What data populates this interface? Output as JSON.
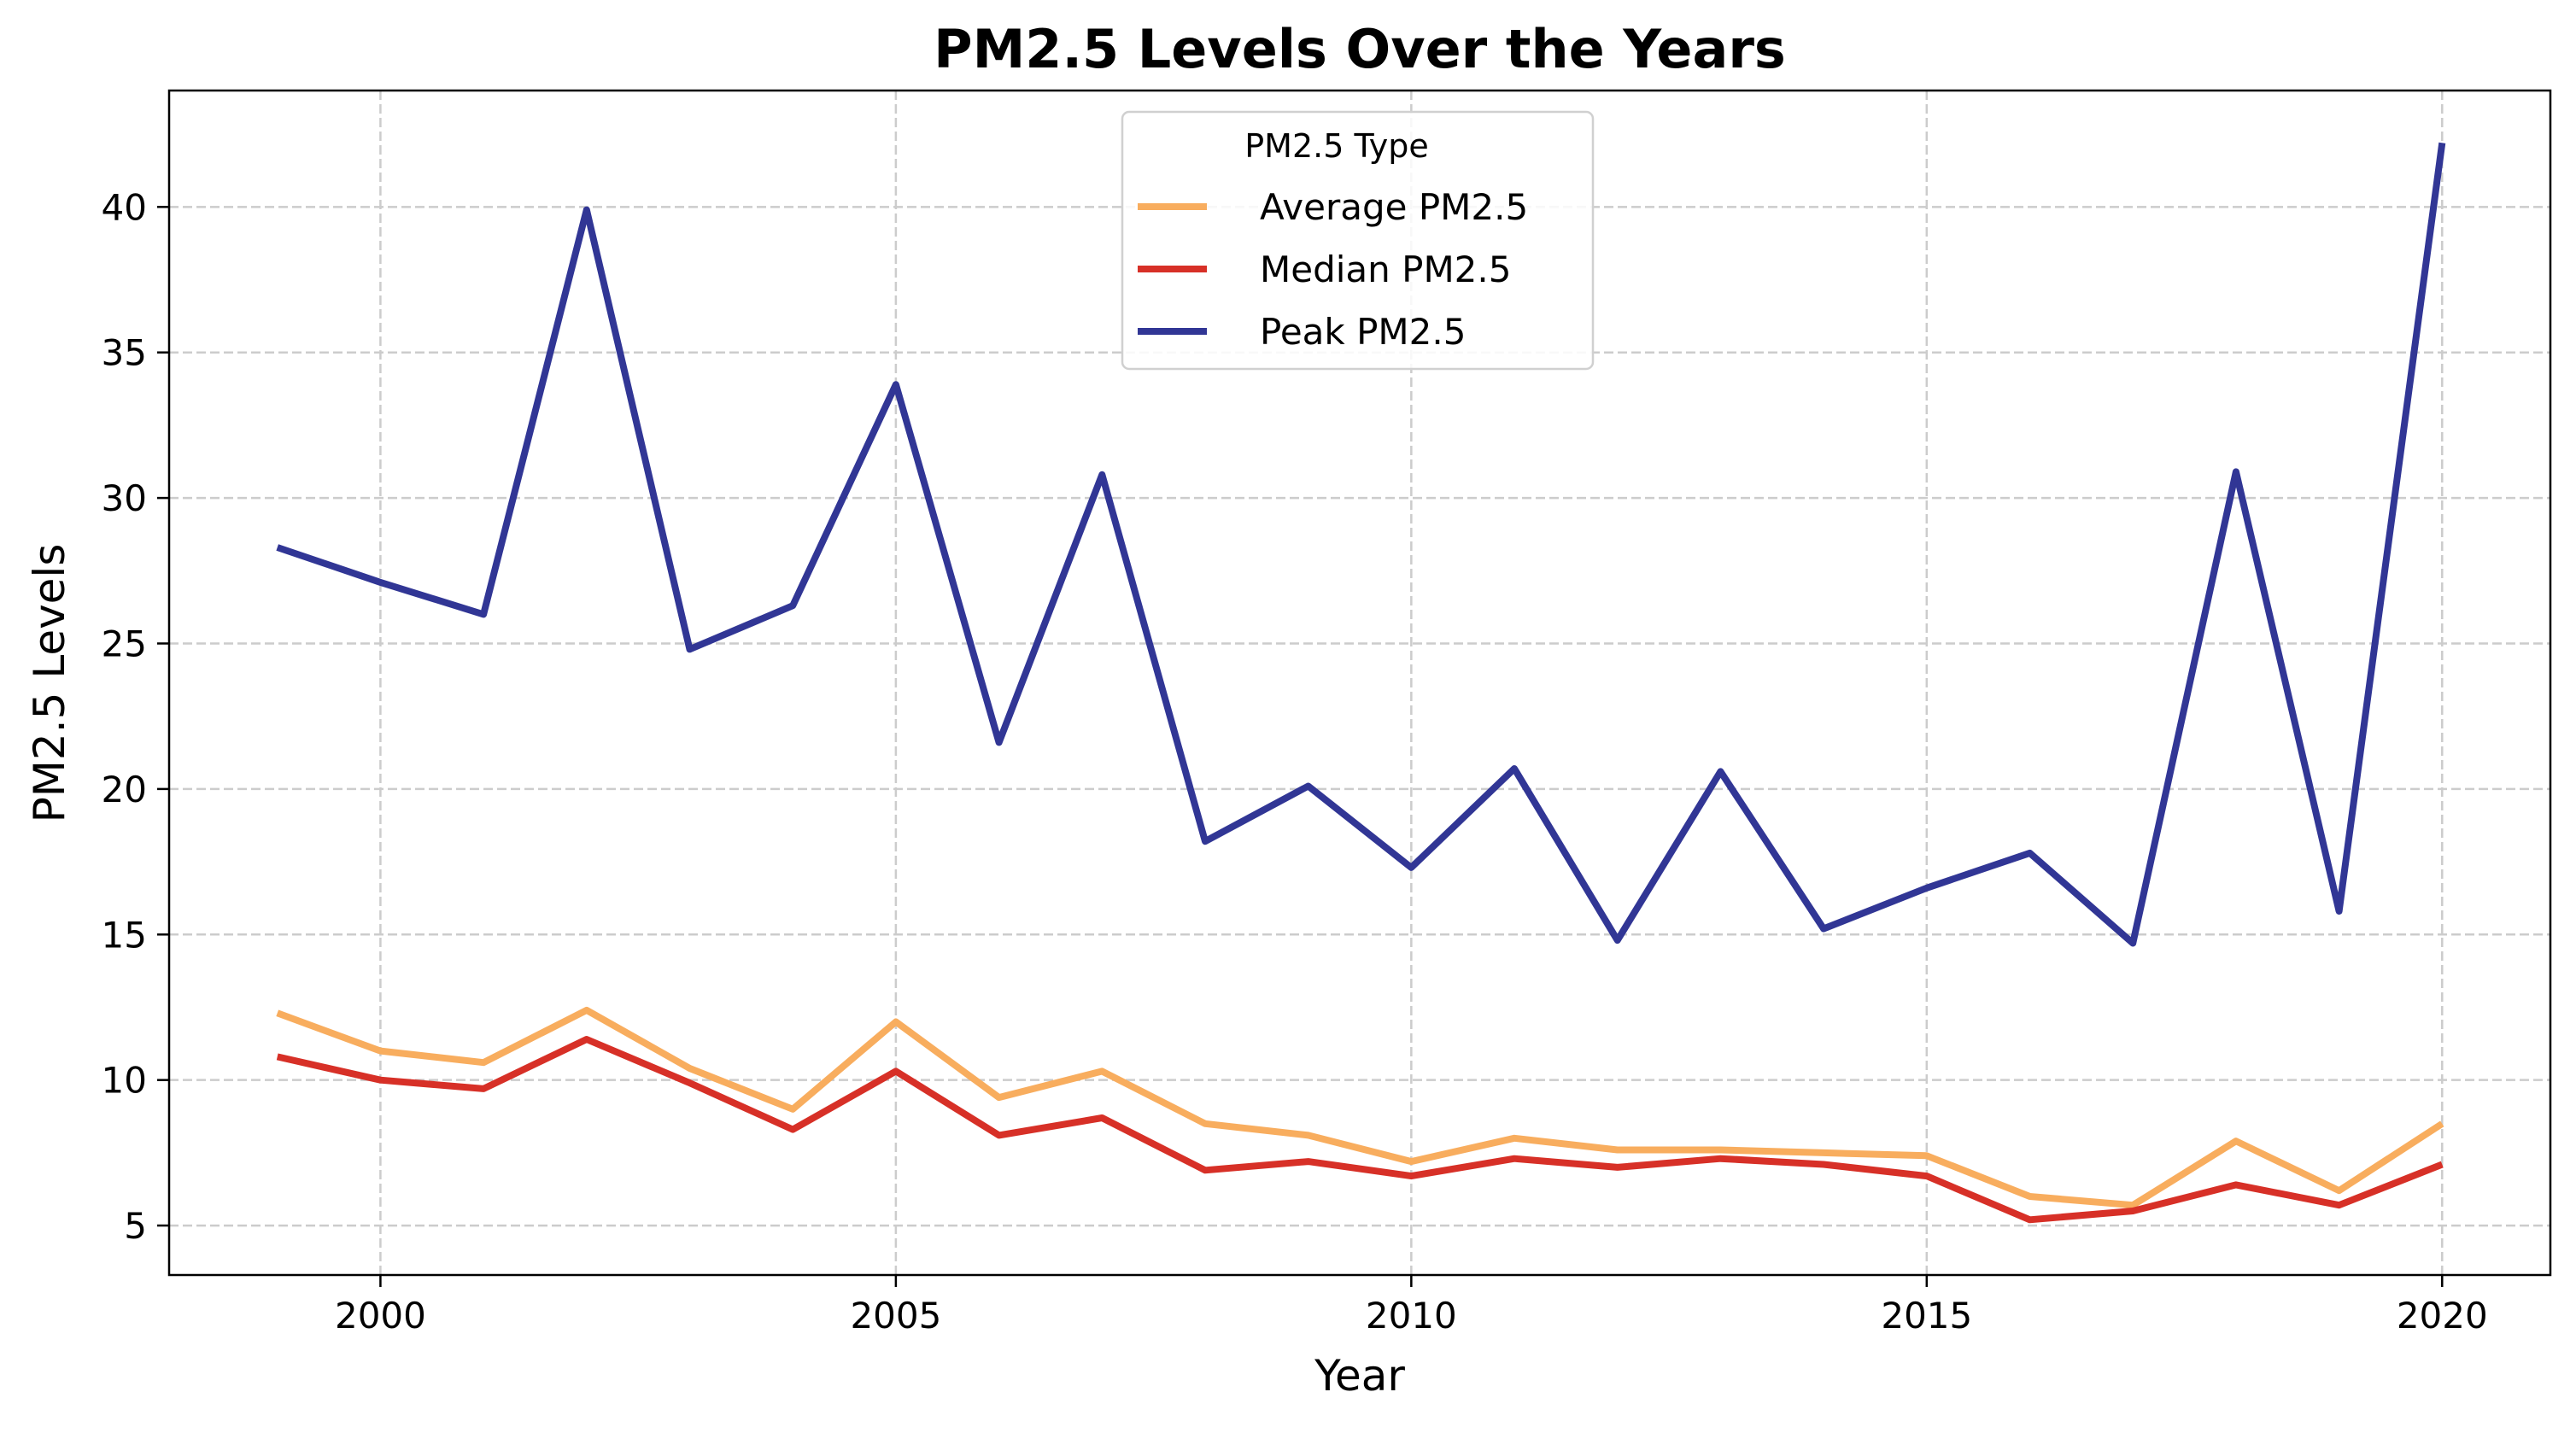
{
  "chart_data": {
    "type": "line",
    "title": "PM2.5 Levels Over the Years",
    "xlabel": "Year",
    "ylabel": "PM2.5 Levels",
    "x": [
      1999,
      2000,
      2001,
      2002,
      2003,
      2004,
      2005,
      2006,
      2007,
      2008,
      2009,
      2010,
      2011,
      2012,
      2013,
      2014,
      2015,
      2016,
      2017,
      2018,
      2019,
      2020
    ],
    "xlim": [
      1997.95,
      2021.05
    ],
    "ylim": [
      3.3,
      44.0
    ],
    "xticks": [
      2000,
      2005,
      2010,
      2015,
      2020
    ],
    "yticks": [
      5,
      10,
      15,
      20,
      25,
      30,
      35,
      40
    ],
    "grid": true,
    "legend": {
      "title": "PM2.5 Type",
      "position": "top-center"
    },
    "series": [
      {
        "name": "Average PM2.5",
        "color": "#f8ad5e",
        "values": [
          12.3,
          11.0,
          10.6,
          12.4,
          10.4,
          9.0,
          12.0,
          9.4,
          10.3,
          8.5,
          8.1,
          7.2,
          8.0,
          7.6,
          7.6,
          7.5,
          7.4,
          6.0,
          5.7,
          7.9,
          6.2,
          8.5
        ]
      },
      {
        "name": "Median PM2.5",
        "color": "#d73027",
        "values": [
          10.8,
          10.0,
          9.7,
          11.4,
          9.9,
          8.3,
          10.3,
          8.1,
          8.7,
          6.9,
          7.2,
          6.7,
          7.3,
          7.0,
          7.3,
          7.1,
          6.7,
          5.2,
          5.5,
          6.4,
          5.7,
          7.1
        ]
      },
      {
        "name": "Peak PM2.5",
        "color": "#313695",
        "values": [
          28.3,
          27.1,
          26.0,
          39.9,
          24.8,
          26.3,
          33.9,
          21.6,
          30.8,
          18.2,
          20.1,
          17.3,
          20.7,
          14.8,
          20.6,
          15.2,
          16.6,
          17.8,
          14.7,
          30.9,
          15.8,
          42.2
        ]
      }
    ]
  }
}
